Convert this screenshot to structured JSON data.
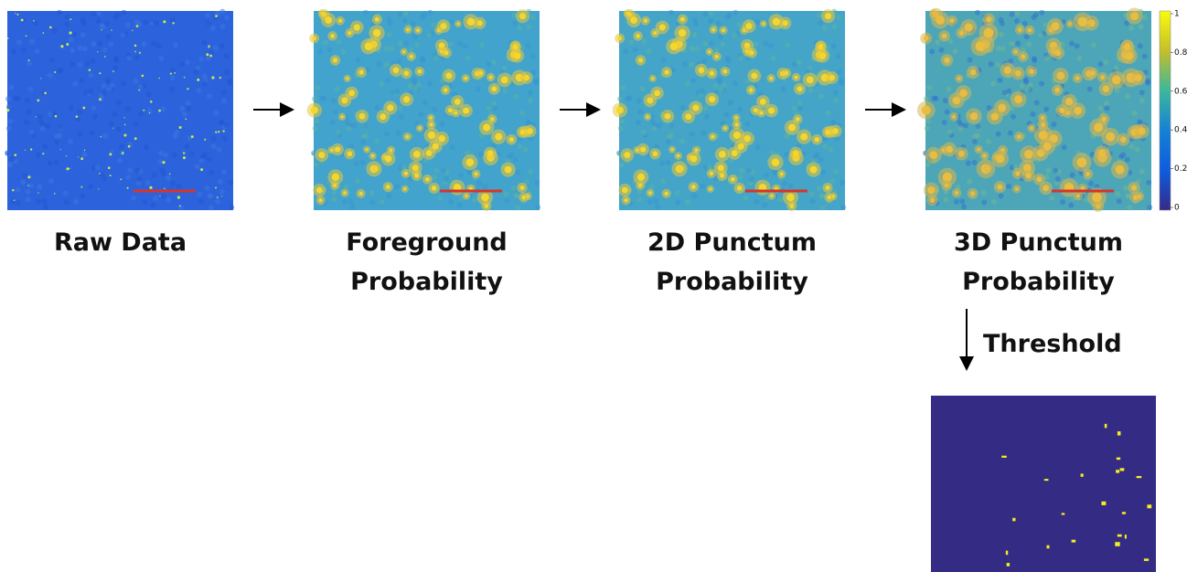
{
  "panels": [
    {
      "lines": [
        "Raw Data"
      ]
    },
    {
      "lines": [
        "Foreground",
        "Probability"
      ]
    },
    {
      "lines": [
        "2D Punctum",
        "Probability"
      ]
    },
    {
      "lines": [
        "3D Punctum",
        "Probability"
      ]
    }
  ],
  "colorbar": {
    "ticks": [
      "1",
      "0.8",
      "0.6",
      "0.4",
      "0.2",
      "0"
    ]
  },
  "threshold": {
    "label": "Threshold"
  }
}
